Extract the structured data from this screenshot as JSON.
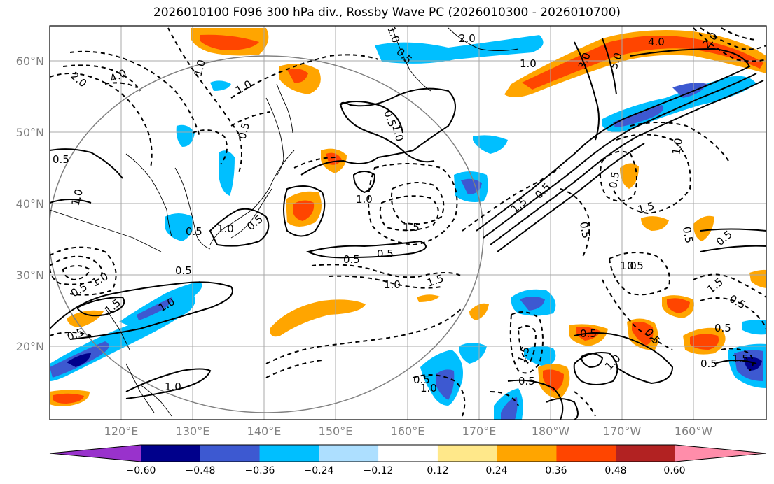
{
  "title": "2026010100 F096 300 hPa div., Rossby Wave PC (2026010300 - 2026010700)",
  "axes": {
    "lat_labels": [
      "60°N",
      "50°N",
      "40°N",
      "30°N",
      "20°N"
    ],
    "lon_labels": [
      "120°E",
      "130°E",
      "140°E",
      "150°E",
      "160°E",
      "170°E",
      "180°W",
      "170°W",
      "160°W"
    ]
  },
  "contour_labels": [
    "2.0",
    "4.0",
    "1.0",
    "1.0",
    "0.5",
    "0.5",
    "1.0",
    "1.0",
    "0.5",
    "2.0",
    "1.0",
    "3.0",
    "5.0",
    "4.0",
    "2.0",
    "0.5",
    "1.0",
    "0.5",
    "1.0",
    "1.0",
    "0.5",
    "1.5",
    "0.5",
    "1.0",
    "0.5",
    "1.5",
    "0.5",
    "1.0",
    "1.5",
    "1.0",
    "0.5",
    "0.5",
    "1.0",
    "1.5",
    "0.5",
    "0.5",
    "1.5",
    "0.5",
    "1.0",
    "0.5",
    "0.5",
    "0.5",
    "1.0",
    "1.5",
    "0.5",
    "0.5",
    "1.0",
    "0.5",
    "0.5",
    "1.0",
    "0.5",
    "0.5",
    "1.5",
    "1.5",
    "0.5"
  ],
  "colorbar": {
    "ticks": [
      "−0.60",
      "−0.48",
      "−0.36",
      "−0.24",
      "−0.12",
      "0.12",
      "0.24",
      "0.36",
      "0.48",
      "0.60"
    ],
    "colors": [
      "#9932CC",
      "#00008B",
      "#3D59D1",
      "#00BFFF",
      "#ADDFFF",
      "#FFFFFF",
      "#FFE88A",
      "#FFA500",
      "#FF4500",
      "#B22222",
      "#FF8DAA"
    ]
  },
  "palette": {
    "frame": "#000000",
    "grid": "#a9a9a9",
    "circle": "#808080"
  }
}
